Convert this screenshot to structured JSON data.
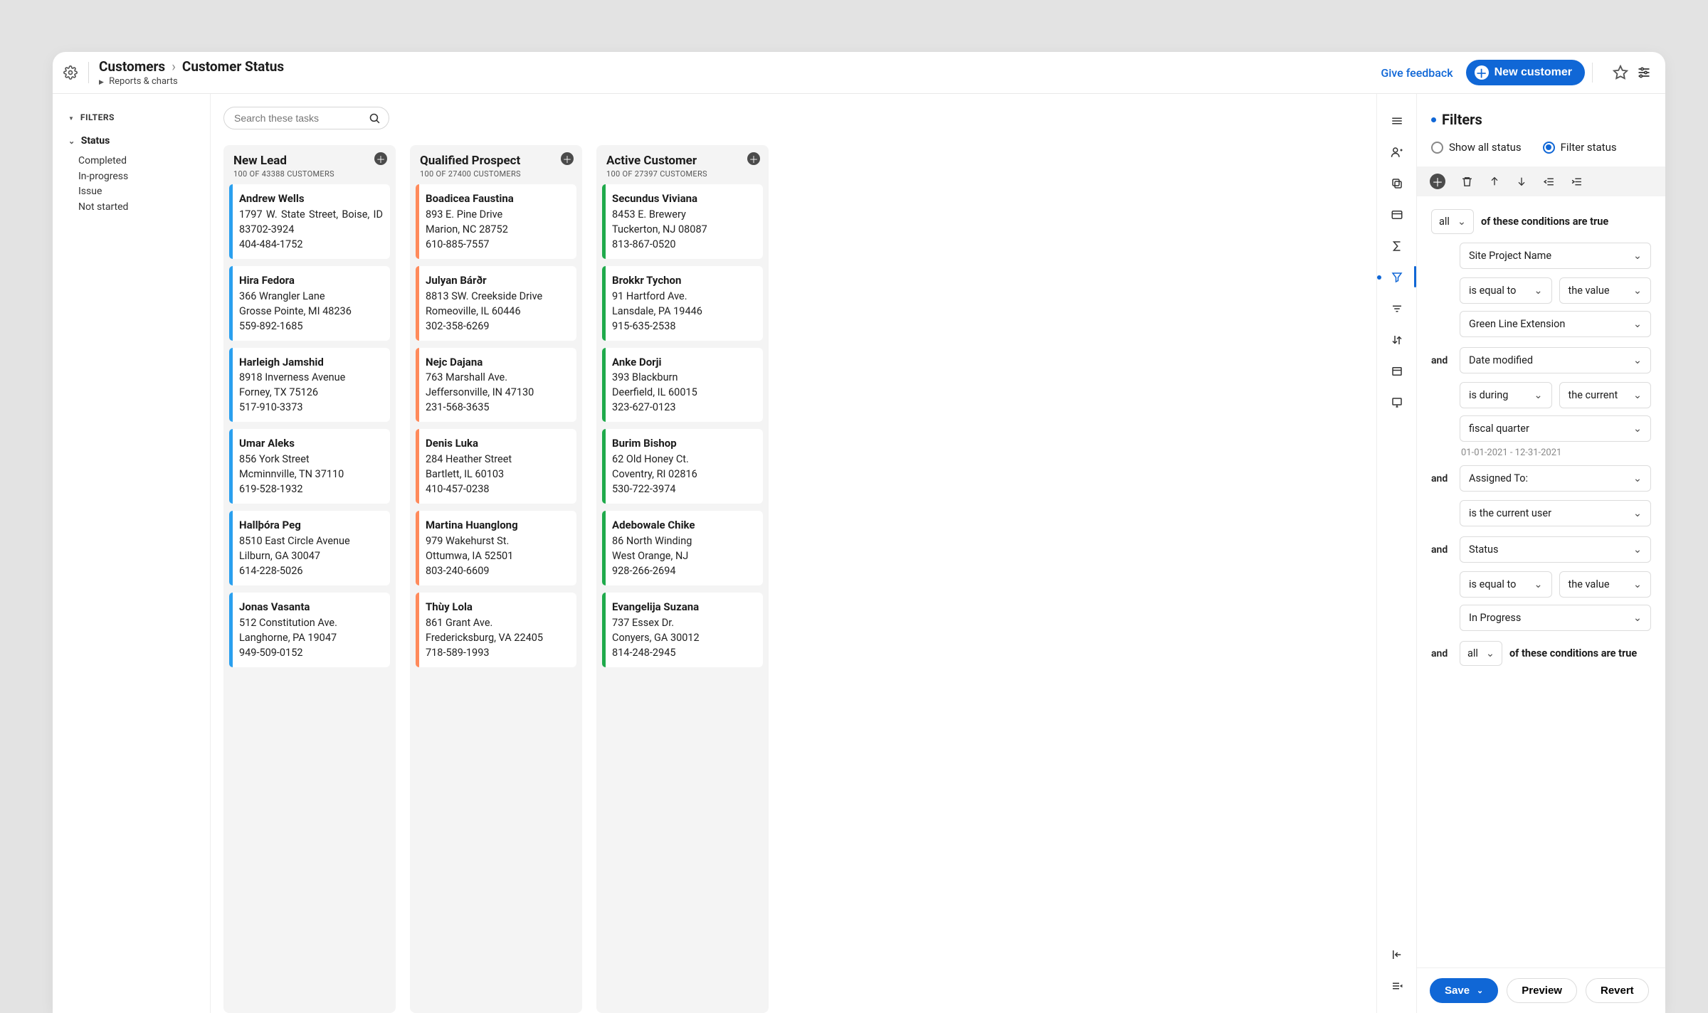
{
  "header": {
    "breadcrumb_root": "Customers",
    "breadcrumb_leaf": "Customer Status",
    "sub_link": "Reports & charts",
    "give_feedback": "Give feedback",
    "new_customer": "New customer"
  },
  "left_filters": {
    "heading": "FILTERS",
    "status_label": "Status",
    "items": [
      "Completed",
      "In-progress",
      "Issue",
      "Not started"
    ]
  },
  "search": {
    "placeholder": "Search these tasks"
  },
  "board": {
    "columns": [
      {
        "title": "New Lead",
        "sub": "100 OF 43388 CUSTOMERS",
        "stripe": "#2aa0ef",
        "cards": [
          {
            "name": "Andrew Wells",
            "addr1": "1797 W. State Street, Boise, ID 83702-3924",
            "addr_justify": true,
            "phone": "404-484-1752"
          },
          {
            "name": "Hira Fedora",
            "addr1": "366 Wrangler Lane",
            "addr2": "Grosse Pointe, MI 48236",
            "phone": "559-892-1685"
          },
          {
            "name": "Harleigh Jamshid",
            "addr1": "8918 Inverness Avenue",
            "addr2": "Forney, TX 75126",
            "phone": "517-910-3373"
          },
          {
            "name": "Umar Aleks",
            "addr1": "856 York Street",
            "addr2": "Mcminnville, TN 37110",
            "phone": "619-528-1932"
          },
          {
            "name": "Hallþóra Peg",
            "addr1": "8510 East Circle Avenue",
            "addr2": "Lilburn, GA 30047",
            "phone": "614-228-5026"
          },
          {
            "name": "Jonas Vasanta",
            "addr1": "512 Constitution Ave.",
            "addr2": "Langhorne, PA 19047",
            "phone": "949-509-0152"
          }
        ]
      },
      {
        "title": "Qualified Prospect",
        "sub": "100 OF 27400 CUSTOMERS",
        "stripe": "#ff8a5b",
        "cards": [
          {
            "name": "Boadicea Faustina",
            "addr1": "893 E. Pine Drive",
            "addr2": "Marion, NC 28752",
            "phone": "610-885-7557"
          },
          {
            "name": "Julyan Bárðr",
            "addr1": "8813 SW. Creekside Drive",
            "addr2": "Romeoville, IL 60446",
            "phone": "302-358-6269"
          },
          {
            "name": "Nejc Dajana",
            "addr1": "763 Marshall Ave.",
            "addr2": "Jeffersonville, IN 47130",
            "phone": "231-568-3635"
          },
          {
            "name": "Denis Luka",
            "addr1": "284 Heather Street",
            "addr2": "Bartlett, IL 60103",
            "phone": "410-457-0238"
          },
          {
            "name": "Martina Huanglong",
            "addr1": "979 Wakehurst St.",
            "addr2": "Ottumwa, IA 52501",
            "phone": "803-240-6609"
          },
          {
            "name": "Thùy Lola",
            "addr1": "861 Grant Ave.",
            "addr2": "Fredericksburg, VA 22405",
            "phone": "718-589-1993"
          }
        ]
      },
      {
        "title": "Active Customer",
        "sub": "100 OF 27397 CUSTOMERS",
        "stripe": "#1faa4b",
        "cards": [
          {
            "name": "Secundus Viviana",
            "addr1": "8453 E. Brewery",
            "addr2": "Tuckerton, NJ 08087",
            "phone": "813-867-0520"
          },
          {
            "name": "Brokkr Tychon",
            "addr1": "91 Hartford Ave.",
            "addr2": "Lansdale, PA 19446",
            "phone": "915-635-2538"
          },
          {
            "name": "Anke Dorji",
            "addr1": "393 Blackburn",
            "addr2": "Deerfield, IL 60015",
            "phone": "323-627-0123"
          },
          {
            "name": "Burim Bishop",
            "addr1": "62 Old Honey Ct.",
            "addr2": "Coventry, RI 02816",
            "phone": "530-722-3974"
          },
          {
            "name": "Adebowale Chike",
            "addr1": "86 North Winding",
            "addr2": "West Orange, NJ",
            "phone": "928-266-2694"
          },
          {
            "name": "Evangelija Suzana",
            "addr1": "737 Essex Dr.",
            "addr2": "Conyers, GA 30012",
            "phone": "814-248-2945"
          }
        ]
      }
    ]
  },
  "filters_panel": {
    "title": "Filters",
    "radio_all": "Show all status",
    "radio_filter": "Filter status",
    "top_scope": "all",
    "top_scope_text": "of these conditions are true",
    "rows": [
      {
        "field": "Site Project Name",
        "op": "is equal to",
        "qualifier": "the value",
        "value": "Green Line Extension"
      },
      {
        "and": "and",
        "field": "Date modified",
        "op": "is during",
        "qualifier": "the current",
        "value": "fiscal quarter",
        "date_range": "01-01-2021 - 12-31-2021"
      },
      {
        "and": "and",
        "field": "Assigned To:",
        "value": "is the current user"
      },
      {
        "and": "and",
        "field": "Status",
        "op": "is equal to",
        "qualifier": "the value",
        "value": "In Progress"
      }
    ],
    "bottom_group": {
      "and": "and",
      "scope": "all",
      "text": "of these conditions are true"
    },
    "footer": {
      "save": "Save",
      "preview": "Preview",
      "revert": "Revert"
    }
  }
}
